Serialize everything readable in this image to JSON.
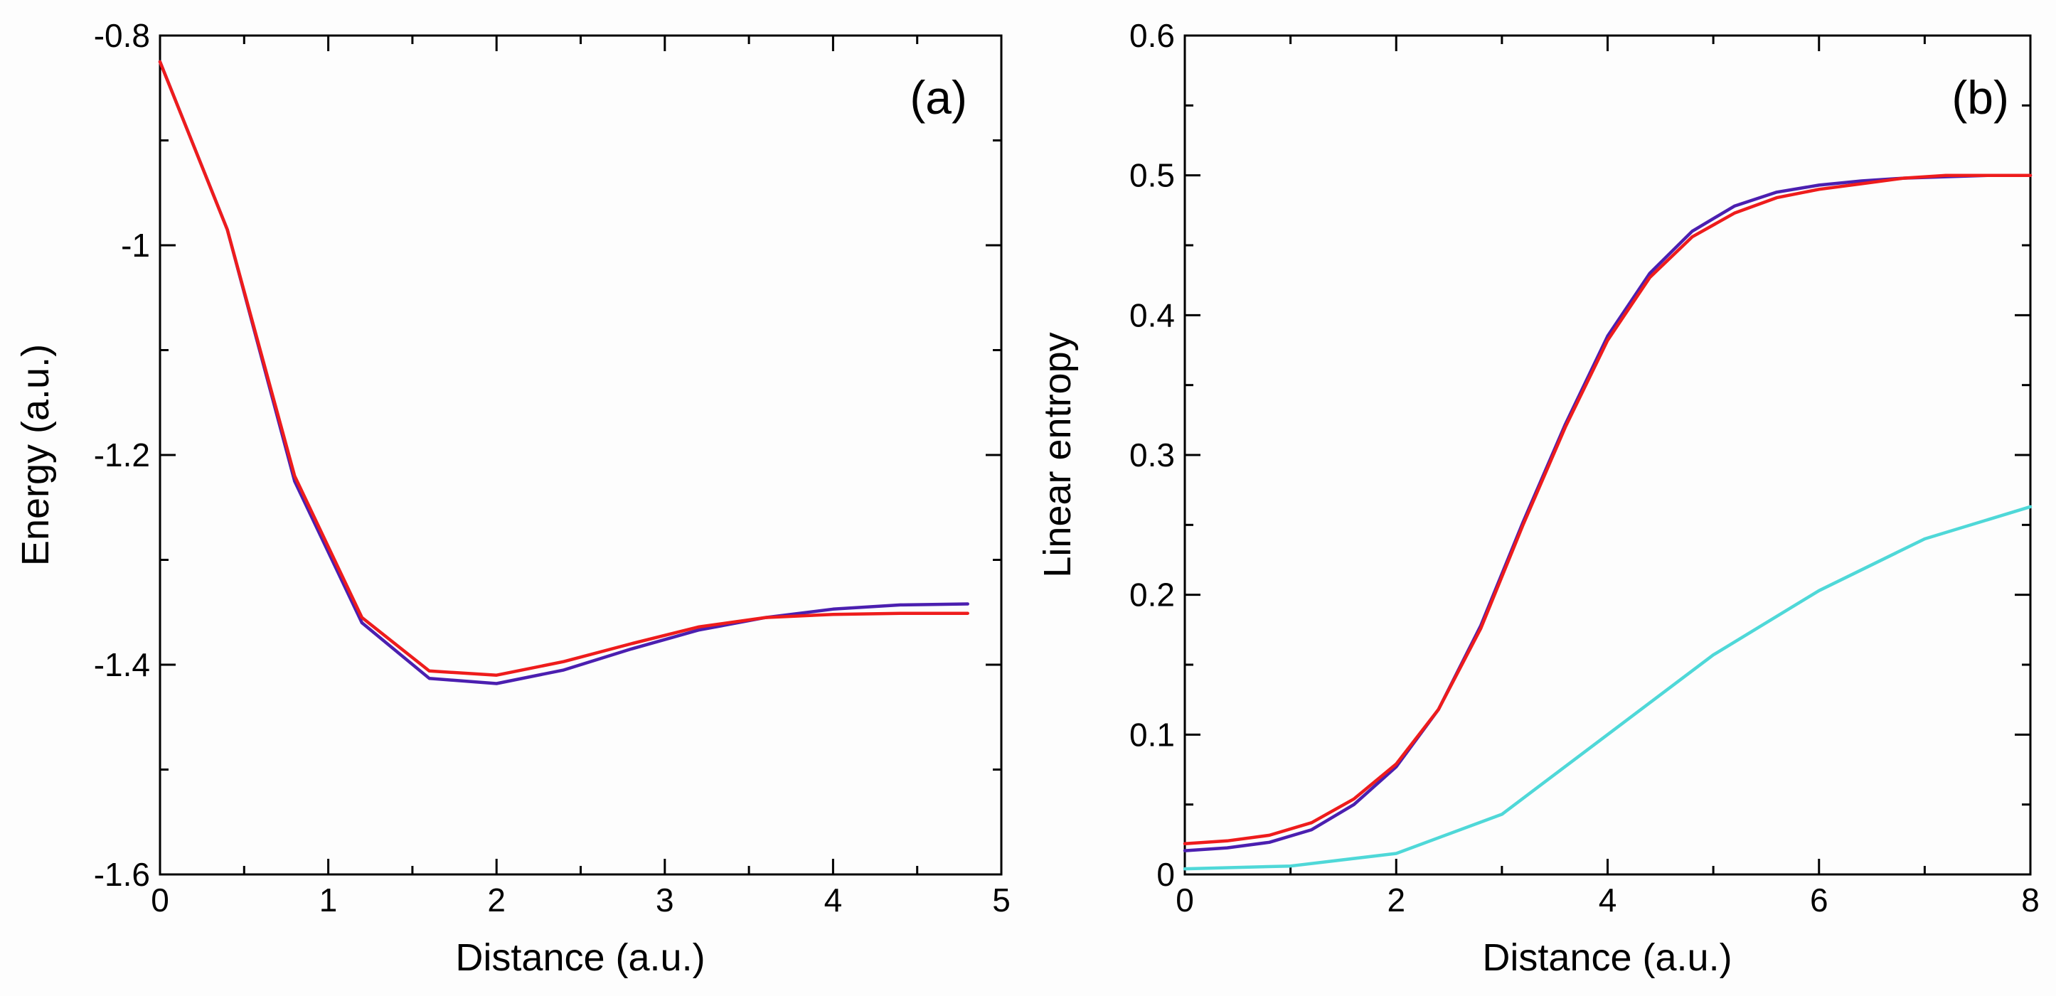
{
  "chart_data": [
    {
      "type": "line",
      "panel_label": "(a)",
      "xlabel": "Distance (a.u.)",
      "ylabel": "Energy (a.u.)",
      "xlim": [
        0,
        5
      ],
      "ylim": [
        -1.6,
        -0.8
      ],
      "x_ticks": [
        0,
        1,
        2,
        3,
        4,
        5
      ],
      "x_tick_labels": [
        "0",
        "1",
        "2",
        "3",
        "4",
        "5"
      ],
      "y_ticks": [
        -0.8,
        -1.0,
        -1.2,
        -1.4,
        -1.6
      ],
      "y_tick_labels": [
        "-0.8",
        "-1",
        "-1.2",
        "-1.4",
        "-1.6"
      ],
      "x_minor_step": 0.5,
      "y_minor_step": 0.1,
      "series": [
        {
          "name": "blue",
          "color": "#4b1fb0",
          "x": [
            0,
            0.4,
            0.8,
            1.2,
            1.6,
            2.0,
            2.4,
            2.8,
            3.2,
            3.6,
            4.0,
            4.4,
            4.8
          ],
          "values": [
            -0.825,
            -0.985,
            -1.225,
            -1.36,
            -1.413,
            -1.418,
            -1.405,
            -1.385,
            -1.367,
            -1.355,
            -1.347,
            -1.343,
            -1.342
          ]
        },
        {
          "name": "red",
          "color": "#ee1c1c",
          "x": [
            0,
            0.4,
            0.8,
            1.2,
            1.6,
            2.0,
            2.4,
            2.8,
            3.2,
            3.6,
            4.0,
            4.4,
            4.8
          ],
          "values": [
            -0.825,
            -0.985,
            -1.22,
            -1.355,
            -1.406,
            -1.41,
            -1.397,
            -1.38,
            -1.364,
            -1.355,
            -1.352,
            -1.351,
            -1.351
          ]
        }
      ]
    },
    {
      "type": "line",
      "panel_label": "(b)",
      "xlabel": "Distance (a.u.)",
      "ylabel": "Linear entropy",
      "xlim": [
        0,
        8
      ],
      "ylim": [
        0,
        0.6
      ],
      "x_ticks": [
        0,
        2,
        4,
        6,
        8
      ],
      "x_tick_labels": [
        "0",
        "2",
        "4",
        "6",
        "8"
      ],
      "y_ticks": [
        0,
        0.1,
        0.2,
        0.3,
        0.4,
        0.5,
        0.6
      ],
      "y_tick_labels": [
        "0",
        "0.1",
        "0.2",
        "0.3",
        "0.4",
        "0.5",
        "0.6"
      ],
      "x_minor_step": 1,
      "y_minor_step": 0.05,
      "series": [
        {
          "name": "blue",
          "color": "#4b1fb0",
          "x": [
            0,
            0.4,
            0.8,
            1.2,
            1.6,
            2.0,
            2.4,
            2.8,
            3.2,
            3.6,
            4.0,
            4.4,
            4.8,
            5.2,
            5.6,
            6.0,
            6.4,
            6.8,
            7.2,
            7.6,
            8.0
          ],
          "values": [
            0.017,
            0.019,
            0.023,
            0.032,
            0.05,
            0.077,
            0.118,
            0.178,
            0.252,
            0.322,
            0.385,
            0.43,
            0.46,
            0.478,
            0.488,
            0.493,
            0.496,
            0.498,
            0.499,
            0.5,
            0.5
          ]
        },
        {
          "name": "red",
          "color": "#ee1c1c",
          "x": [
            0,
            0.4,
            0.8,
            1.2,
            1.6,
            2.0,
            2.4,
            2.8,
            3.2,
            3.6,
            4.0,
            4.4,
            4.8,
            5.2,
            5.6,
            6.0,
            6.4,
            6.8,
            7.2,
            7.6,
            8.0
          ],
          "values": [
            0.022,
            0.024,
            0.028,
            0.037,
            0.054,
            0.079,
            0.118,
            0.176,
            0.25,
            0.32,
            0.382,
            0.427,
            0.456,
            0.473,
            0.484,
            0.49,
            0.494,
            0.498,
            0.5,
            0.5,
            0.5
          ]
        },
        {
          "name": "cyan",
          "color": "#4fd8d8",
          "x": [
            0,
            1,
            2,
            3,
            4,
            5,
            6,
            7,
            8
          ],
          "values": [
            0.004,
            0.006,
            0.015,
            0.043,
            0.1,
            0.157,
            0.203,
            0.24,
            0.263
          ]
        }
      ]
    }
  ]
}
